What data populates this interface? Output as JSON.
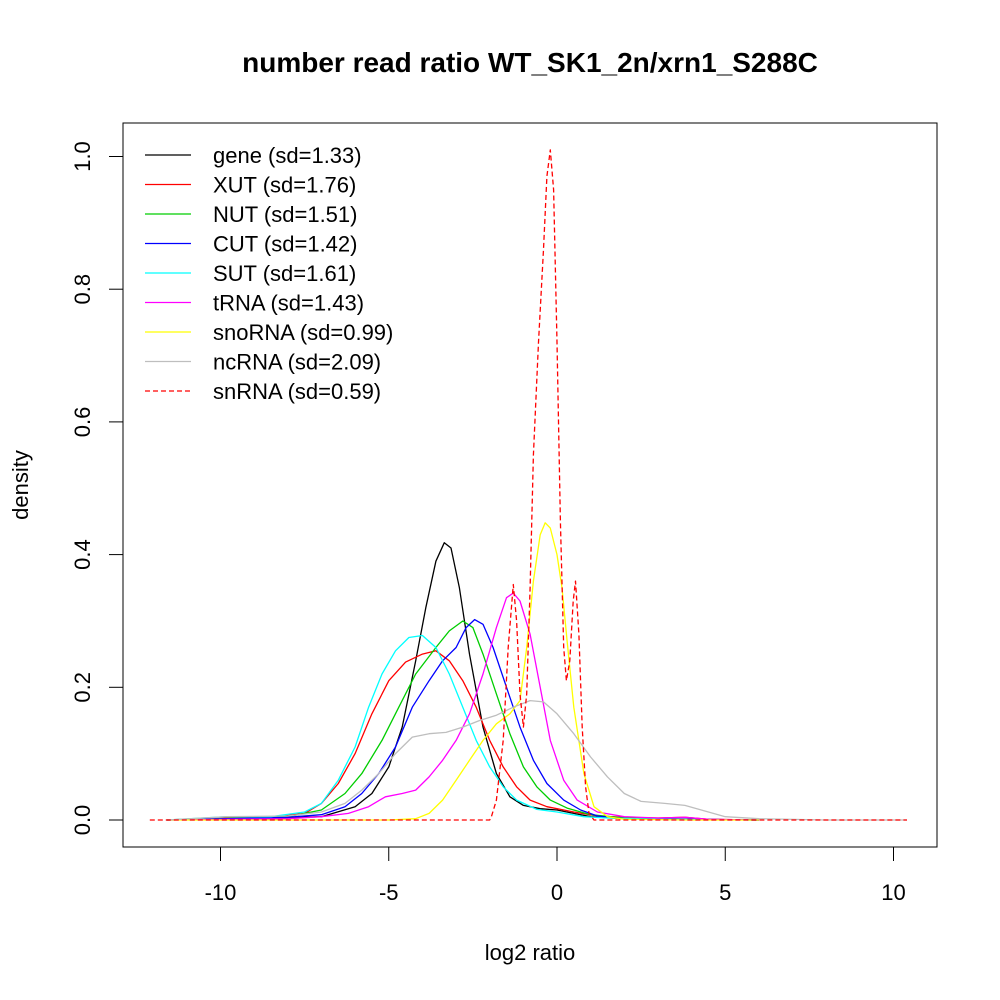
{
  "chart_data": {
    "type": "line",
    "title": "number read ratio WT_SK1_2n/xrn1_S288C",
    "xlabel": "log2 ratio",
    "ylabel": "density",
    "xlim": [
      -12.1,
      10.5
    ],
    "ylim": [
      0,
      1.01
    ],
    "x_ticks": [
      -10,
      -5,
      0,
      5,
      10
    ],
    "x_tick_labels": [
      "-10",
      "-5",
      "0",
      "5",
      "10"
    ],
    "y_ticks": [
      0,
      0.2,
      0.4,
      0.6,
      0.8,
      1.0
    ],
    "y_tick_labels": [
      "0.0",
      "0.2",
      "0.4",
      "0.6",
      "0.8",
      "1.0"
    ],
    "grid": false,
    "legend_position": "top-left",
    "series": [
      {
        "name": "gene (sd=1.33)",
        "color": "#000000",
        "dash": false,
        "points": [
          [
            -11.6,
            0
          ],
          [
            -9,
            0.002
          ],
          [
            -7,
            0.005
          ],
          [
            -6,
            0.02
          ],
          [
            -5.5,
            0.04
          ],
          [
            -5,
            0.08
          ],
          [
            -4.6,
            0.14
          ],
          [
            -4.2,
            0.24
          ],
          [
            -3.9,
            0.32
          ],
          [
            -3.6,
            0.39
          ],
          [
            -3.35,
            0.418
          ],
          [
            -3.15,
            0.41
          ],
          [
            -2.9,
            0.35
          ],
          [
            -2.6,
            0.25
          ],
          [
            -2.2,
            0.14
          ],
          [
            -1.8,
            0.07
          ],
          [
            -1.4,
            0.035
          ],
          [
            -1,
            0.022
          ],
          [
            -0.5,
            0.017
          ],
          [
            0,
            0.015
          ],
          [
            0.5,
            0.01
          ],
          [
            1,
            0.005
          ],
          [
            2,
            0.002
          ],
          [
            4,
            0.001
          ],
          [
            6,
            0
          ]
        ]
      },
      {
        "name": "XUT (sd=1.76)",
        "color": "#ff0000",
        "dash": false,
        "points": [
          [
            -11.6,
            0
          ],
          [
            -9.8,
            0.004
          ],
          [
            -8.5,
            0.004
          ],
          [
            -7.5,
            0.01
          ],
          [
            -7,
            0.025
          ],
          [
            -6.5,
            0.055
          ],
          [
            -6,
            0.1
          ],
          [
            -5.5,
            0.16
          ],
          [
            -5,
            0.21
          ],
          [
            -4.5,
            0.238
          ],
          [
            -4,
            0.25
          ],
          [
            -3.6,
            0.255
          ],
          [
            -3.2,
            0.24
          ],
          [
            -2.8,
            0.21
          ],
          [
            -2.4,
            0.17
          ],
          [
            -2,
            0.12
          ],
          [
            -1.6,
            0.08
          ],
          [
            -1.2,
            0.05
          ],
          [
            -0.8,
            0.03
          ],
          [
            -0.3,
            0.02
          ],
          [
            0.5,
            0.012
          ],
          [
            1.2,
            0.006
          ],
          [
            2,
            0.004
          ],
          [
            3,
            0.003
          ],
          [
            3.8,
            0.004
          ],
          [
            4.5,
            0.001
          ],
          [
            6,
            0
          ]
        ]
      },
      {
        "name": "NUT (sd=1.51)",
        "color": "#00cd00",
        "dash": false,
        "points": [
          [
            -11.6,
            0
          ],
          [
            -8,
            0.005
          ],
          [
            -7,
            0.015
          ],
          [
            -6.3,
            0.04
          ],
          [
            -5.8,
            0.07
          ],
          [
            -5.2,
            0.12
          ],
          [
            -4.7,
            0.17
          ],
          [
            -4.2,
            0.22
          ],
          [
            -3.6,
            0.26
          ],
          [
            -3.2,
            0.285
          ],
          [
            -2.8,
            0.3
          ],
          [
            -2.5,
            0.29
          ],
          [
            -2.2,
            0.25
          ],
          [
            -1.8,
            0.19
          ],
          [
            -1.4,
            0.13
          ],
          [
            -1,
            0.08
          ],
          [
            -0.6,
            0.05
          ],
          [
            -0.2,
            0.03
          ],
          [
            0.3,
            0.018
          ],
          [
            1,
            0.008
          ],
          [
            2,
            0.003
          ],
          [
            4,
            0.001
          ],
          [
            6,
            0
          ]
        ]
      },
      {
        "name": "CUT (sd=1.42)",
        "color": "#0000ff",
        "dash": false,
        "points": [
          [
            -11.6,
            0
          ],
          [
            -8,
            0.004
          ],
          [
            -7,
            0.008
          ],
          [
            -6.3,
            0.02
          ],
          [
            -5.8,
            0.04
          ],
          [
            -5.3,
            0.07
          ],
          [
            -4.8,
            0.11
          ],
          [
            -4.3,
            0.17
          ],
          [
            -3.8,
            0.21
          ],
          [
            -3.4,
            0.24
          ],
          [
            -3,
            0.26
          ],
          [
            -2.7,
            0.29
          ],
          [
            -2.45,
            0.302
          ],
          [
            -2.2,
            0.295
          ],
          [
            -1.9,
            0.26
          ],
          [
            -1.5,
            0.2
          ],
          [
            -1.1,
            0.14
          ],
          [
            -0.7,
            0.09
          ],
          [
            -0.3,
            0.055
          ],
          [
            0.2,
            0.03
          ],
          [
            0.7,
            0.015
          ],
          [
            1.2,
            0.006
          ],
          [
            2,
            0.002
          ],
          [
            4,
            0.001
          ],
          [
            6,
            0
          ]
        ]
      },
      {
        "name": "SUT (sd=1.61)",
        "color": "#00ffff",
        "dash": false,
        "points": [
          [
            -11.6,
            0
          ],
          [
            -9.8,
            0.005
          ],
          [
            -8.5,
            0.005
          ],
          [
            -7.5,
            0.012
          ],
          [
            -7,
            0.025
          ],
          [
            -6.5,
            0.06
          ],
          [
            -6,
            0.11
          ],
          [
            -5.6,
            0.17
          ],
          [
            -5.2,
            0.22
          ],
          [
            -4.8,
            0.255
          ],
          [
            -4.4,
            0.275
          ],
          [
            -4,
            0.278
          ],
          [
            -3.6,
            0.26
          ],
          [
            -3.2,
            0.22
          ],
          [
            -2.8,
            0.17
          ],
          [
            -2.4,
            0.12
          ],
          [
            -2,
            0.08
          ],
          [
            -1.6,
            0.05
          ],
          [
            -1.2,
            0.03
          ],
          [
            -0.6,
            0.016
          ],
          [
            0,
            0.012
          ],
          [
            0.8,
            0.005
          ],
          [
            1.5,
            0.003
          ],
          [
            3,
            0.001
          ],
          [
            6,
            0
          ]
        ]
      },
      {
        "name": "tRNA (sd=1.43)",
        "color": "#ff00ff",
        "dash": false,
        "points": [
          [
            -11.6,
            0
          ],
          [
            -8,
            0.002
          ],
          [
            -7,
            0.005
          ],
          [
            -6.2,
            0.01
          ],
          [
            -5.6,
            0.02
          ],
          [
            -5.1,
            0.035
          ],
          [
            -4.6,
            0.04
          ],
          [
            -4.2,
            0.045
          ],
          [
            -3.8,
            0.065
          ],
          [
            -3.4,
            0.09
          ],
          [
            -3,
            0.12
          ],
          [
            -2.6,
            0.16
          ],
          [
            -2.2,
            0.22
          ],
          [
            -1.8,
            0.29
          ],
          [
            -1.5,
            0.335
          ],
          [
            -1.3,
            0.342
          ],
          [
            -1.1,
            0.33
          ],
          [
            -0.8,
            0.28
          ],
          [
            -0.5,
            0.2
          ],
          [
            -0.2,
            0.12
          ],
          [
            0.2,
            0.06
          ],
          [
            0.6,
            0.03
          ],
          [
            1.2,
            0.012
          ],
          [
            2,
            0.005
          ],
          [
            3,
            0.003
          ],
          [
            3.8,
            0.004
          ],
          [
            4.5,
            0.001
          ],
          [
            6,
            0
          ]
        ]
      },
      {
        "name": "snoRNA (sd=0.99)",
        "color": "#ffff00",
        "dash": false,
        "points": [
          [
            -11.6,
            0
          ],
          [
            -8,
            0
          ],
          [
            -5,
            0
          ],
          [
            -4.2,
            0.002
          ],
          [
            -3.8,
            0.01
          ],
          [
            -3.4,
            0.03
          ],
          [
            -3,
            0.06
          ],
          [
            -2.6,
            0.09
          ],
          [
            -2.2,
            0.12
          ],
          [
            -1.8,
            0.145
          ],
          [
            -1.4,
            0.16
          ],
          [
            -1.1,
            0.18
          ],
          [
            -0.9,
            0.26
          ],
          [
            -0.7,
            0.36
          ],
          [
            -0.5,
            0.43
          ],
          [
            -0.35,
            0.448
          ],
          [
            -0.2,
            0.44
          ],
          [
            0,
            0.4
          ],
          [
            0.15,
            0.35
          ],
          [
            0.3,
            0.27
          ],
          [
            0.5,
            0.17
          ],
          [
            0.8,
            0.07
          ],
          [
            1.1,
            0.02
          ],
          [
            1.5,
            0.005
          ],
          [
            2,
            0.001
          ],
          [
            4,
            0
          ],
          [
            6,
            0
          ]
        ]
      },
      {
        "name": "ncRNA (sd=2.09)",
        "color": "#bebebe",
        "dash": false,
        "points": [
          [
            -11.6,
            0
          ],
          [
            -9.8,
            0.005
          ],
          [
            -8,
            0.006
          ],
          [
            -7,
            0.012
          ],
          [
            -6.3,
            0.025
          ],
          [
            -5.8,
            0.045
          ],
          [
            -5.3,
            0.07
          ],
          [
            -4.8,
            0.1
          ],
          [
            -4.3,
            0.125
          ],
          [
            -3.8,
            0.13
          ],
          [
            -3.3,
            0.132
          ],
          [
            -2.8,
            0.14
          ],
          [
            -2.3,
            0.15
          ],
          [
            -1.8,
            0.158
          ],
          [
            -1.3,
            0.17
          ],
          [
            -0.8,
            0.18
          ],
          [
            -0.4,
            0.178
          ],
          [
            0,
            0.16
          ],
          [
            0.5,
            0.13
          ],
          [
            1,
            0.095
          ],
          [
            1.5,
            0.065
          ],
          [
            2,
            0.04
          ],
          [
            2.5,
            0.028
          ],
          [
            3.2,
            0.025
          ],
          [
            3.8,
            0.022
          ],
          [
            4.5,
            0.012
          ],
          [
            5,
            0.005
          ],
          [
            6,
            0.002
          ],
          [
            8,
            0
          ],
          [
            10.4,
            0
          ]
        ]
      },
      {
        "name": "snRNA (sd=0.59)",
        "color": "#ff0000",
        "dash": true,
        "points": [
          [
            -12.1,
            0
          ],
          [
            -6,
            0
          ],
          [
            -2,
            0
          ],
          [
            -1.95,
            0.005
          ],
          [
            -1.8,
            0.03
          ],
          [
            -1.6,
            0.12
          ],
          [
            -1.45,
            0.26
          ],
          [
            -1.3,
            0.355
          ],
          [
            -1.2,
            0.3
          ],
          [
            -1.1,
            0.19
          ],
          [
            -1,
            0.14
          ],
          [
            -0.9,
            0.19
          ],
          [
            -0.8,
            0.35
          ],
          [
            -0.7,
            0.55
          ],
          [
            -0.55,
            0.72
          ],
          [
            -0.4,
            0.86
          ],
          [
            -0.3,
            0.97
          ],
          [
            -0.2,
            1.01
          ],
          [
            -0.1,
            0.95
          ],
          [
            0,
            0.72
          ],
          [
            0.1,
            0.45
          ],
          [
            0.2,
            0.26
          ],
          [
            0.28,
            0.21
          ],
          [
            0.38,
            0.24
          ],
          [
            0.48,
            0.33
          ],
          [
            0.55,
            0.36
          ],
          [
            0.65,
            0.28
          ],
          [
            0.75,
            0.14
          ],
          [
            0.85,
            0.05
          ],
          [
            0.95,
            0.01
          ],
          [
            1.1,
            0
          ],
          [
            3,
            0
          ],
          [
            10.4,
            0
          ]
        ]
      }
    ]
  }
}
